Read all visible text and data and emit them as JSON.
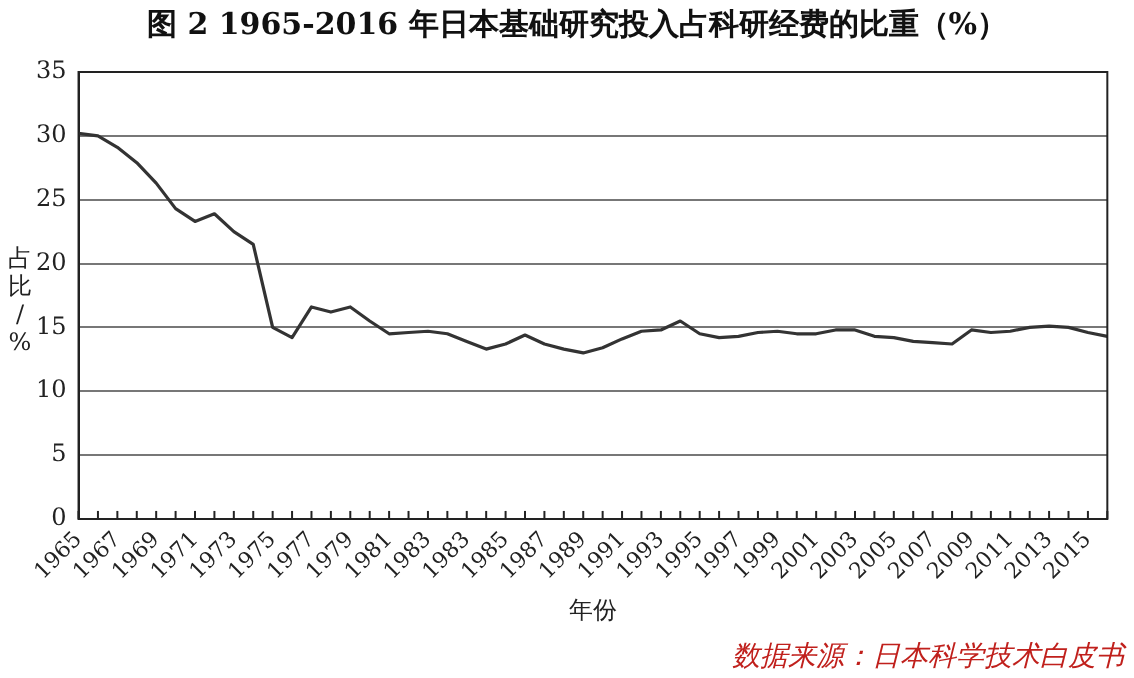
{
  "chart_data": {
    "type": "line",
    "title": "图 2 1965-2016 年日本基础研究投入占科研经费的比重（%）",
    "xlabel": "年份",
    "ylabel": "占比/%",
    "categories": [
      "1965",
      null,
      "1967",
      null,
      "1969",
      null,
      "1971",
      null,
      "1973",
      null,
      "1975",
      null,
      "1977",
      null,
      "1979",
      null,
      "1981",
      null,
      "1983",
      null,
      "1983",
      null,
      "1985",
      null,
      "1987",
      null,
      "1989",
      null,
      "1991",
      null,
      "1993",
      null,
      "1995",
      null,
      "1997",
      null,
      "1999",
      null,
      "2001",
      null,
      "2003",
      null,
      "2005",
      null,
      "2007",
      null,
      "2009",
      null,
      "2011",
      null,
      "2013",
      null,
      "2015",
      null
    ],
    "series": [
      {
        "color": "#333333",
        "values": [
          30.2,
          30.0,
          29.1,
          27.9,
          26.3,
          24.3,
          23.3,
          23.9,
          22.5,
          21.5,
          15.0,
          14.2,
          16.6,
          16.2,
          16.6,
          15.5,
          14.5,
          14.6,
          14.7,
          14.5,
          13.9,
          13.3,
          13.7,
          14.4,
          13.7,
          13.3,
          13.0,
          13.4,
          14.1,
          14.7,
          14.8,
          15.5,
          14.5,
          14.2,
          14.3,
          14.6,
          14.7,
          14.5,
          14.5,
          14.8,
          14.8,
          14.3,
          14.2,
          13.9,
          13.8,
          13.7,
          14.8,
          14.6,
          14.7,
          15.0,
          15.1,
          15.0,
          14.6,
          14.3
        ]
      }
    ],
    "ylim": [
      0,
      35
    ],
    "yticks": [
      0,
      5,
      10,
      15,
      20,
      25,
      30,
      35
    ],
    "grid": "y",
    "legend": false,
    "marker": "none",
    "line_style": "solid",
    "annotations": [
      "数据来源：日本科学技术白皮书"
    ]
  }
}
